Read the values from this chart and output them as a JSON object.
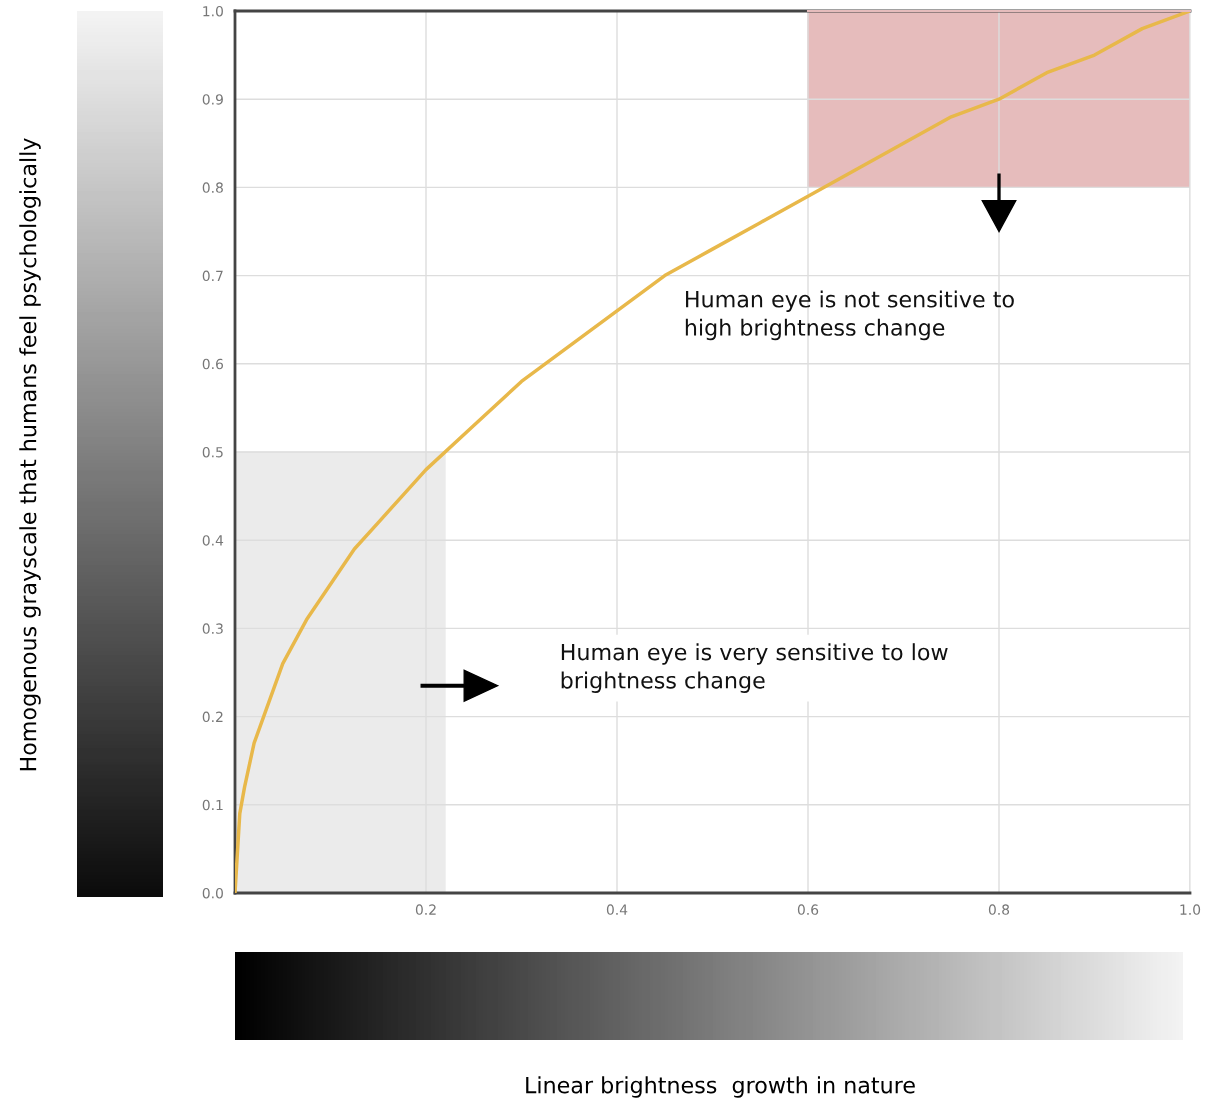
{
  "chart_data": {
    "type": "line",
    "x": [
      0,
      0.005,
      0.01,
      0.02,
      0.03,
      0.05,
      0.075,
      0.1,
      0.125,
      0.15,
      0.175,
      0.2,
      0.25,
      0.3,
      0.35,
      0.4,
      0.45,
      0.5,
      0.55,
      0.6,
      0.65,
      0.7,
      0.75,
      0.8,
      0.85,
      0.9,
      0.95,
      1.0
    ],
    "series": [
      {
        "type": "area",
        "x": [
          0,
          0.22
        ],
        "color": "#ebebeb",
        "values": [
          0.5,
          0.5
        ]
      },
      {
        "type": "line",
        "x": [
          0.6,
          1.0
        ],
        "color": "#e6bcbc",
        "values": [
          1.0,
          1.0
        ],
        "lower": [
          0.8,
          0.8
        ],
        "upper": [
          1.0,
          1.0
        ]
      },
      {
        "color": "#e8b84a",
        "values": [
          0,
          0.09,
          0.12,
          0.17,
          0.2,
          0.26,
          0.31,
          0.35,
          0.39,
          0.42,
          0.45,
          0.48,
          0.53,
          0.58,
          0.62,
          0.66,
          0.7,
          0.73,
          0.76,
          0.79,
          0.82,
          0.85,
          0.88,
          0.9,
          0.93,
          0.95,
          0.98,
          1.0
        ]
      }
    ],
    "xlim": [
      0,
      1.0
    ],
    "ylim": [
      0,
      1.0
    ],
    "xticks": [
      {
        "value": 0.2,
        "label": "0.2"
      },
      {
        "value": 0.4,
        "label": "0.4"
      },
      {
        "value": 0.6,
        "label": "0.6"
      },
      {
        "value": 0.8,
        "label": "0.8"
      },
      {
        "value": 1.0,
        "label": "1.0"
      }
    ],
    "yticks": [
      {
        "value": 0,
        "label": "0.0"
      },
      {
        "value": 0.1,
        "label": "0.1"
      },
      {
        "value": 0.2,
        "label": "0.2"
      },
      {
        "value": 0.3,
        "label": "0.3"
      },
      {
        "value": 0.4,
        "label": "0.4"
      },
      {
        "value": 0.5,
        "label": "0.5"
      },
      {
        "value": 0.6,
        "label": "0.6"
      },
      {
        "value": 0.7,
        "label": "0.7"
      },
      {
        "value": 0.8,
        "label": "0.8"
      },
      {
        "value": 0.9,
        "label": "0.9"
      },
      {
        "value": 1.0,
        "label": "1.0"
      }
    ],
    "annotations": [
      "Linear brightness  growth in nature",
      "Homogenous grayscale that humans feel psychologically",
      "Human eye is not sensitive to\nhigh brightness change",
      "Human eye is very sensitive to low\nbrightness change"
    ],
    "grid": true,
    "marker": "none",
    "line_style": "solid"
  }
}
